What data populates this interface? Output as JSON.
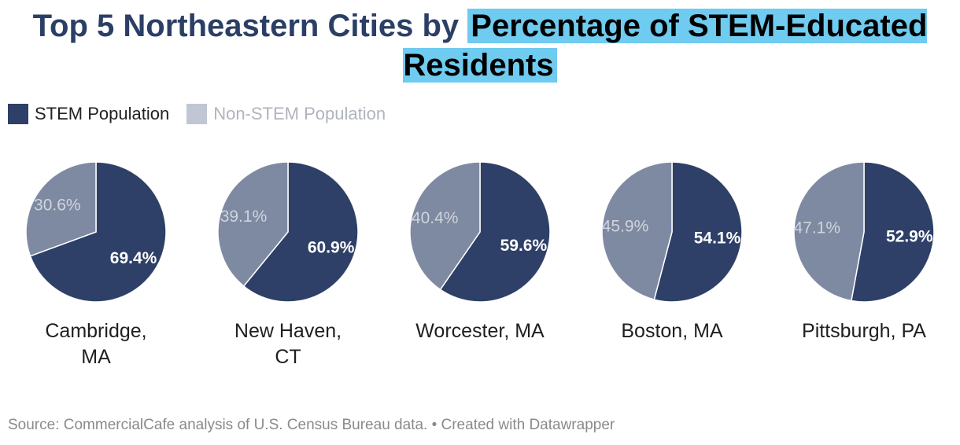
{
  "title_plain": "Top 5 Northeastern Cities by",
  "title_highlight": "Percentage of STEM-Educated Residents",
  "legend": [
    {
      "label": "STEM Population",
      "color": "#2e4068",
      "text_color": "#222222"
    },
    {
      "label": "Non-STEM Population",
      "color": "#c0c6d3",
      "text_color": "#b0b4bd"
    }
  ],
  "colors": {
    "stem": "#2e4068",
    "non_stem": "#7e8aa2",
    "stem_label": "#ffffff",
    "non_stem_label": "#d0d4dc"
  },
  "chart_data": {
    "type": "pie",
    "categories": [
      "Cambridge, MA",
      "New Haven, CT",
      "Worcester, MA",
      "Boston, MA",
      "Pittsburgh, PA"
    ],
    "series": [
      {
        "name": "STEM Population",
        "values": [
          69.4,
          60.9,
          59.6,
          54.1,
          52.9
        ]
      },
      {
        "name": "Non-STEM Population",
        "values": [
          30.6,
          39.1,
          40.4,
          45.9,
          47.1
        ]
      }
    ],
    "value_labels": {
      "stem": [
        "69.4%",
        "60.9%",
        "59.6%",
        "54.1%",
        "52.9%"
      ],
      "non_stem": [
        "30.6%",
        "39.1%",
        "40.4%",
        "45.9%",
        "47.1%"
      ]
    },
    "legend_position": "top-left"
  },
  "cities": [
    {
      "line1": "Cambridge,",
      "line2": "MA"
    },
    {
      "line1": "New Haven,",
      "line2": "CT"
    },
    {
      "line1": "Worcester, MA",
      "line2": ""
    },
    {
      "line1": "Boston, MA",
      "line2": ""
    },
    {
      "line1": "Pittsburgh, PA",
      "line2": ""
    }
  ],
  "source": "Source: CommercialCafe analysis of U.S. Census Bureau data. • Created with Datawrapper"
}
